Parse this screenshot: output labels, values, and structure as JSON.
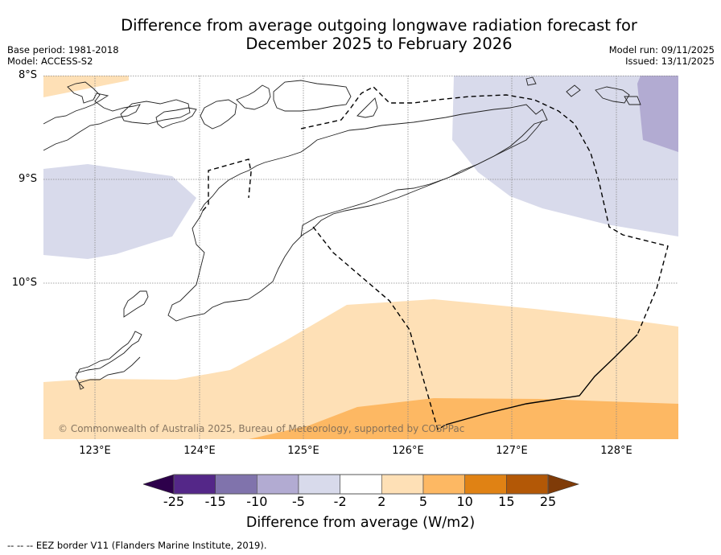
{
  "header": {
    "title_line1": "Difference from average outgoing longwave radiation forecast for",
    "title_line2": "December 2025 to February 2026",
    "base_period": "Base period: 1981-2018",
    "model": "Model: ACCESS-S2",
    "model_run": "Model run: 09/11/2025",
    "issued": "Issued: 13/11/2025"
  },
  "map": {
    "lat_labels": [
      "8°S",
      "9°S",
      "10°S"
    ],
    "lon_labels": [
      "123°E",
      "124°E",
      "125°E",
      "126°E",
      "127°E",
      "128°E"
    ],
    "extent": {
      "lon_min": 122.5,
      "lon_max": 128.6,
      "lat_min": -11.5,
      "lat_max": -8.0
    },
    "copyright": "© Commonwealth of Australia 2025, Bureau of Meteorology, supported by COSPPac",
    "regions": [
      {
        "name": "positive-2-to-5-north-west",
        "class": "2 to 5"
      },
      {
        "name": "negative-5-to-2-west",
        "class": "-5 to -2"
      },
      {
        "name": "negative-5-to-2-north-east",
        "class": "-5 to -2"
      },
      {
        "name": "negative-10-to-5-north-east-corner",
        "class": "-10 to -5"
      },
      {
        "name": "positive-2-to-5-south",
        "class": "2 to 5"
      },
      {
        "name": "positive-5-to-10-south",
        "class": "5 to 10"
      }
    ]
  },
  "colorbar": {
    "label": "Difference from average (W/m2)",
    "ticks": [
      "-25",
      "-15",
      "-10",
      "-5",
      "-2",
      "2",
      "5",
      "10",
      "15",
      "25"
    ],
    "under_color": "#2d004b",
    "over_color": "#7f3b08",
    "bins": [
      {
        "range": "-25 to -15",
        "color": "#542788"
      },
      {
        "range": "-15 to -10",
        "color": "#8073ac"
      },
      {
        "range": "-10 to -5",
        "color": "#b2abd2"
      },
      {
        "range": "-5 to -2",
        "color": "#d8daeb"
      },
      {
        "range": "-2 to 2",
        "color": "#ffffff"
      },
      {
        "range": "2 to 5",
        "color": "#fee0b6"
      },
      {
        "range": "5 to 10",
        "color": "#fdb863"
      },
      {
        "range": "10 to 15",
        "color": "#e08214"
      },
      {
        "range": "15 to 25",
        "color": "#b35806"
      }
    ]
  },
  "footer": {
    "eez_note": "--  --  -- EEZ border V11 (Flanders Marine Institute, 2019)."
  }
}
